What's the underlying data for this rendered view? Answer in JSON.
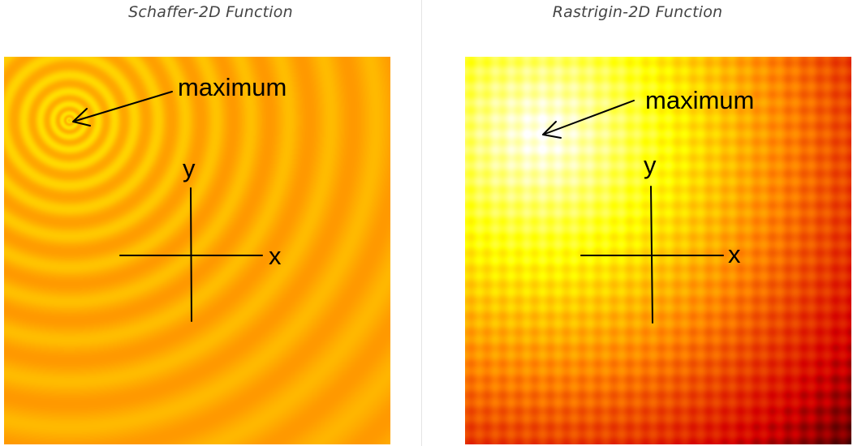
{
  "panels": {
    "left": {
      "caption": "Schaffer-2D Function",
      "annotation": "maximum",
      "x_axis_label": "x",
      "y_axis_label": "y",
      "colormap": [
        "#ff8c00",
        "#ffb000",
        "#ffe000"
      ]
    },
    "right": {
      "caption": "Rastrigin-2D Function",
      "annotation": "maximum",
      "x_axis_label": "x",
      "y_axis_label": "y",
      "colormap": [
        "#000000",
        "#d40000",
        "#ff8000",
        "#ffff00",
        "#ffffff"
      ]
    }
  }
}
